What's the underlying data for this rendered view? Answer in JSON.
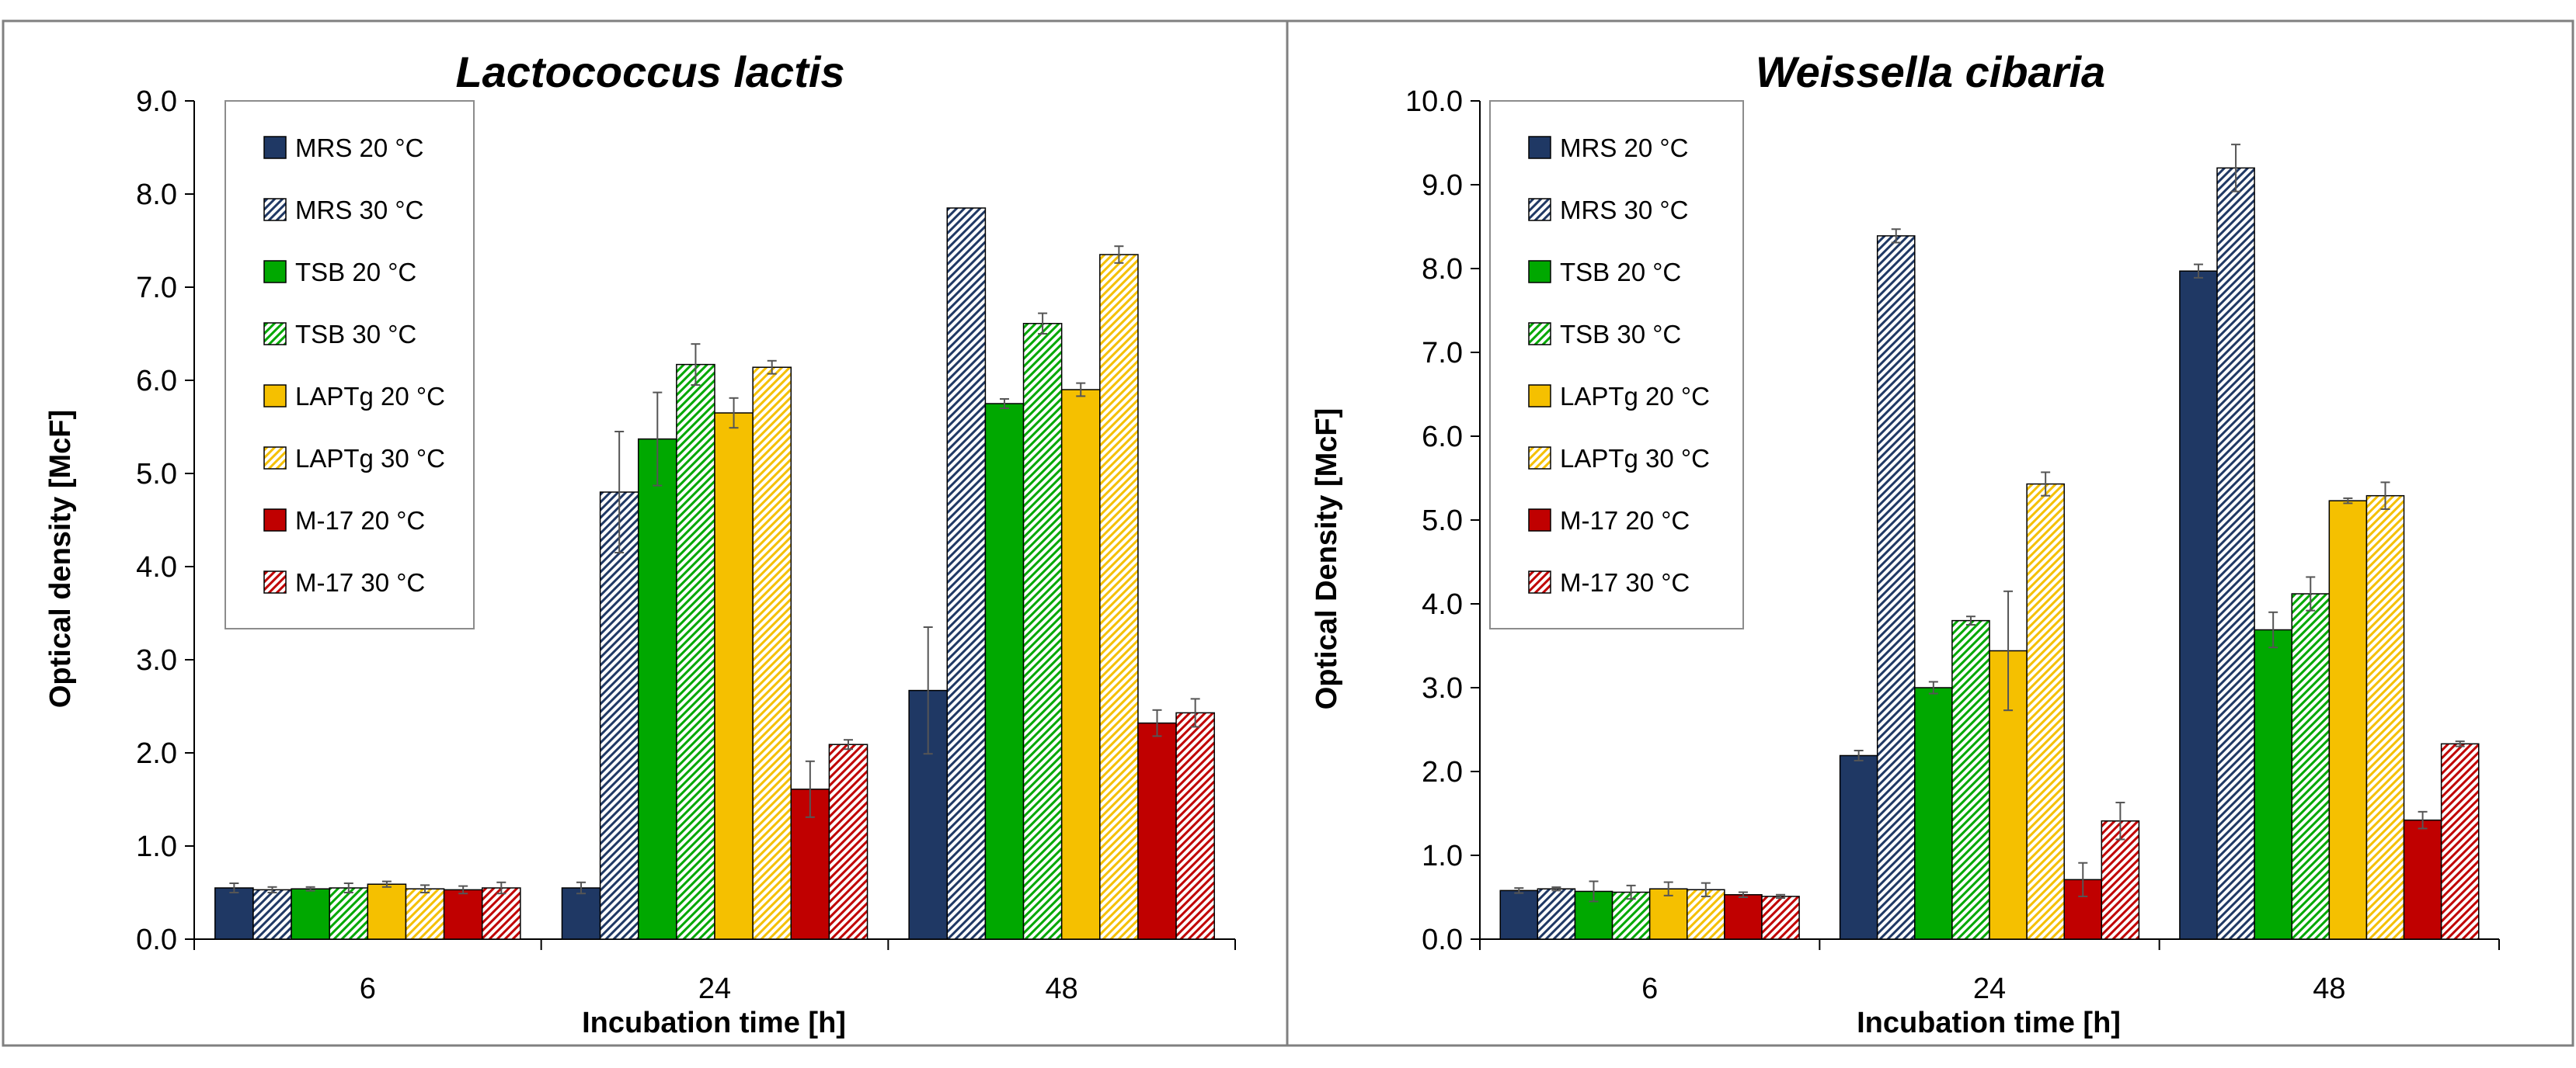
{
  "colors": {
    "MRS": "#1f3864",
    "TSB": "#00a800",
    "LAPTg": "#f5c000",
    "M17": "#c00000"
  },
  "chart_data": [
    {
      "type": "bar",
      "title": "Lactococcus lactis",
      "xlabel": "Incubation time [h]",
      "ylabel": "Optical density [McF]",
      "ylim": [
        0,
        9
      ],
      "ystep": 1,
      "yticks": [
        "0.0",
        "1.0",
        "2.0",
        "3.0",
        "4.0",
        "5.0",
        "6.0",
        "7.0",
        "8.0",
        "9.0"
      ],
      "categories": [
        "6",
        "24",
        "48"
      ],
      "legend_position": "top-left",
      "series": [
        {
          "name": "MRS 20 °C",
          "media": "MRS",
          "hatched": false,
          "values": [
            0.55,
            0.55,
            2.67
          ],
          "errors": [
            0.05,
            0.06,
            0.68
          ]
        },
        {
          "name": "MRS 30 °C",
          "media": "MRS",
          "hatched": true,
          "values": [
            0.53,
            4.8,
            7.85
          ],
          "errors": [
            0.03,
            0.65,
            0.0
          ]
        },
        {
          "name": "TSB 20 °C",
          "media": "TSB",
          "hatched": false,
          "values": [
            0.54,
            5.37,
            5.75
          ],
          "errors": [
            0.02,
            0.5,
            0.05
          ]
        },
        {
          "name": "TSB 30 °C",
          "media": "TSB",
          "hatched": true,
          "values": [
            0.55,
            6.17,
            6.61
          ],
          "errors": [
            0.05,
            0.22,
            0.11
          ]
        },
        {
          "name": "LAPTg 20 °C",
          "media": "LAPTg",
          "hatched": false,
          "values": [
            0.59,
            5.65,
            5.9
          ],
          "errors": [
            0.03,
            0.16,
            0.07
          ]
        },
        {
          "name": "LAPTg 30 °C",
          "media": "LAPTg",
          "hatched": true,
          "values": [
            0.54,
            6.14,
            7.35
          ],
          "errors": [
            0.04,
            0.07,
            0.09
          ]
        },
        {
          "name": "M-17 20 °C",
          "media": "M17",
          "hatched": false,
          "values": [
            0.53,
            1.61,
            2.32
          ],
          "errors": [
            0.04,
            0.3,
            0.14
          ]
        },
        {
          "name": "M-17 30 °C",
          "media": "M17",
          "hatched": true,
          "values": [
            0.55,
            2.09,
            2.43
          ],
          "errors": [
            0.06,
            0.05,
            0.15
          ]
        }
      ]
    },
    {
      "type": "bar",
      "title": "Weissella cibaria",
      "xlabel": "Incubation time [h]",
      "ylabel": "Optical Density [McF]",
      "ylim": [
        0,
        10
      ],
      "ystep": 1,
      "yticks": [
        "0.0",
        "1.0",
        "2.0",
        "3.0",
        "4.0",
        "5.0",
        "6.0",
        "7.0",
        "8.0",
        "9.0",
        "10.0"
      ],
      "categories": [
        "6",
        "24",
        "48"
      ],
      "legend_position": "top-left",
      "series": [
        {
          "name": "MRS 20 °C",
          "media": "MRS",
          "hatched": false,
          "values": [
            0.58,
            2.19,
            7.97
          ],
          "errors": [
            0.03,
            0.06,
            0.08
          ]
        },
        {
          "name": "MRS 30 °C",
          "media": "MRS",
          "hatched": true,
          "values": [
            0.6,
            8.39,
            9.2
          ],
          "errors": [
            0.02,
            0.08,
            0.28
          ]
        },
        {
          "name": "TSB 20 °C",
          "media": "TSB",
          "hatched": false,
          "values": [
            0.57,
            3.0,
            3.69
          ],
          "errors": [
            0.12,
            0.07,
            0.21
          ]
        },
        {
          "name": "TSB 30 °C",
          "media": "TSB",
          "hatched": true,
          "values": [
            0.56,
            3.8,
            4.12
          ],
          "errors": [
            0.08,
            0.05,
            0.2
          ]
        },
        {
          "name": "LAPTg 20 °C",
          "media": "LAPTg",
          "hatched": false,
          "values": [
            0.6,
            3.44,
            5.23
          ],
          "errors": [
            0.08,
            0.71,
            0.03
          ]
        },
        {
          "name": "LAPTg 30 °C",
          "media": "LAPTg",
          "hatched": true,
          "values": [
            0.59,
            5.43,
            5.29
          ],
          "errors": [
            0.08,
            0.14,
            0.16
          ]
        },
        {
          "name": "M-17 20 °C",
          "media": "M17",
          "hatched": false,
          "values": [
            0.53,
            0.71,
            1.42
          ],
          "errors": [
            0.03,
            0.2,
            0.1
          ]
        },
        {
          "name": "M-17 30 °C",
          "media": "M17",
          "hatched": true,
          "values": [
            0.51,
            1.41,
            2.33
          ],
          "errors": [
            0.02,
            0.22,
            0.03
          ]
        }
      ]
    }
  ]
}
